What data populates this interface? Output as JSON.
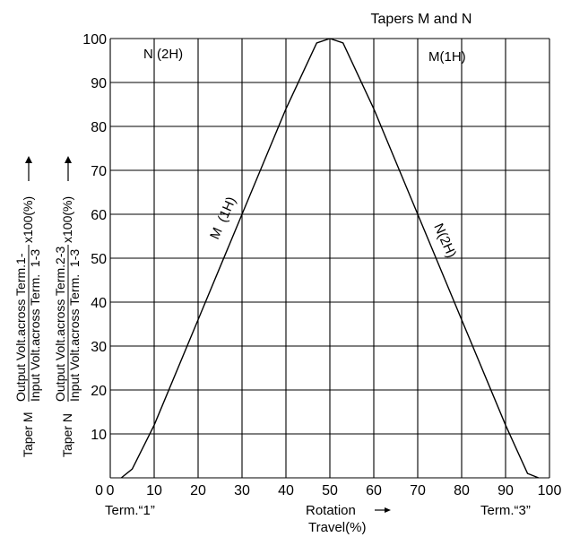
{
  "chart_data": {
    "type": "line",
    "title": "Tapers M and N",
    "xlim": [
      0,
      100
    ],
    "ylim": [
      0,
      100
    ],
    "x_ticks": [
      "0",
      "10",
      "20",
      "30",
      "40",
      "50",
      "60",
      "70",
      "80",
      "90",
      "100"
    ],
    "y_ticks": [
      "10",
      "20",
      "30",
      "40",
      "50",
      "60",
      "70",
      "80",
      "90",
      "100"
    ],
    "grid": true,
    "x_label": {
      "line1": "Rotation",
      "line2": "Travel(%)",
      "left_end": "Term.“1”",
      "right_end": "Term.“3”"
    },
    "y_labels": [
      {
        "prefix": "Taper M",
        "numerator": "Output Volt.across Term.1-",
        "denominator": "Input Volt.across Term.  1-3",
        "suffix": "x100(%)"
      },
      {
        "prefix": "Taper N",
        "numerator": "Output Volt.across Term.2-3",
        "denominator": "Input Volt.across Term.  1-3",
        "suffix": "x100(%)"
      }
    ],
    "annotations": {
      "n_top": "N (2H)",
      "m_top": "M(1H)",
      "m_curve": "M  (1H)",
      "n_curve": "N(2H)"
    },
    "series": [
      {
        "name": "M (1H)",
        "x": [
          2.5,
          5,
          10,
          20,
          30,
          40,
          47,
          50
        ],
        "y": [
          0,
          2,
          12,
          36,
          60,
          84,
          99,
          100
        ]
      },
      {
        "name": "N (2H)",
        "x": [
          50,
          53,
          60,
          70,
          80,
          90,
          95,
          97.5
        ],
        "y": [
          100,
          99,
          84,
          60,
          36,
          12,
          1,
          0
        ]
      }
    ]
  }
}
